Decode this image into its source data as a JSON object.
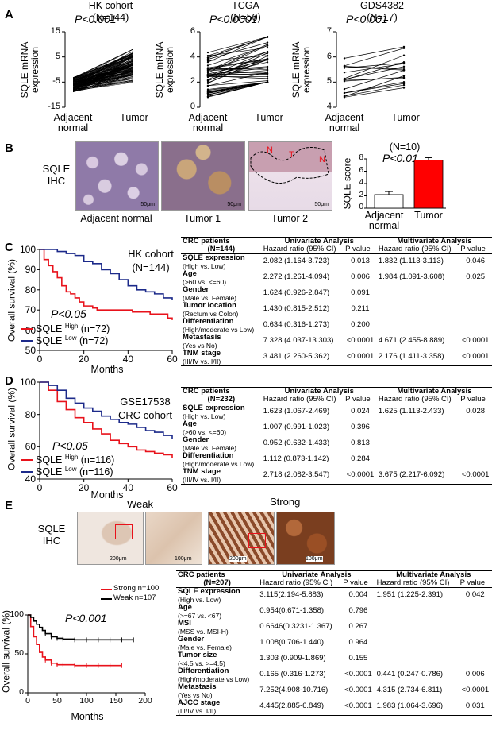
{
  "panels": {
    "A": "A",
    "B": "B",
    "C": "C",
    "D": "D",
    "E": "E"
  },
  "panelA": {
    "ylabel": "SQLE mRNA\nexpression",
    "x_categories": [
      "Adjacent\nnormal",
      "Tumor"
    ],
    "plots": [
      {
        "title": "HK cohort\n(N=144)",
        "p": "P<0.001",
        "yticks": [
          "15",
          "5",
          "-5",
          "-15"
        ]
      },
      {
        "title": "TCGA\n(N=50)",
        "p": "P<0.0001",
        "yticks": [
          "6",
          "4",
          "2",
          "0"
        ]
      },
      {
        "title": "GDS4382\n(N=17)",
        "p": "P<0.001",
        "yticks": [
          "7",
          "6",
          "5",
          "4"
        ]
      }
    ]
  },
  "panelB": {
    "ihc_label": "SQLE\nIHC",
    "captions": [
      "Adjacent normal",
      "Tumor 1",
      "Tumor 2"
    ],
    "scale": "50μm",
    "tumor_marks": [
      "N",
      "T",
      "N"
    ],
    "bar_title": "(N=10)",
    "bar_p": "P<0.01",
    "bar_ylabel": "SQLE score",
    "bar_yticks": [
      "8",
      "6",
      "4",
      "2",
      "0"
    ],
    "bar_categories": [
      "Adjacent\nnormal",
      "Tumor"
    ]
  },
  "chart_data": [
    {
      "type": "scatter",
      "panel": "A",
      "title": "HK cohort (N=144)",
      "categories": [
        "Adjacent normal",
        "Tumor"
      ],
      "ylabel": "SQLE mRNA expression",
      "ylim": [
        -15,
        15
      ]
    },
    {
      "type": "scatter",
      "panel": "A",
      "title": "TCGA (N=50)",
      "categories": [
        "Adjacent normal",
        "Tumor"
      ],
      "ylabel": "SQLE mRNA expression",
      "ylim": [
        0,
        6
      ]
    },
    {
      "type": "scatter",
      "panel": "A",
      "title": "GDS4382 (N=17)",
      "categories": [
        "Adjacent normal",
        "Tumor"
      ],
      "ylabel": "SQLE mRNA expression",
      "ylim": [
        4,
        7
      ]
    },
    {
      "type": "bar",
      "panel": "B",
      "title": "(N=10)",
      "categories": [
        "Adjacent normal",
        "Tumor"
      ],
      "values": [
        2.2,
        7.8
      ],
      "errors": [
        0.5,
        0.4
      ],
      "ylabel": "SQLE score",
      "ylim": [
        0,
        8
      ],
      "colors": [
        "#ffffff",
        "#ff0000"
      ]
    },
    {
      "type": "line",
      "panel": "C",
      "title": "HK cohort (N=144)",
      "xlabel": "Months",
      "ylabel": "Overall survival (%)",
      "xlim": [
        0,
        60
      ],
      "ylim": [
        50,
        100
      ],
      "series": [
        {
          "name": "SQLE High (n=72)",
          "color": "#e8121b",
          "x": [
            0,
            2,
            4,
            6,
            8,
            10,
            12,
            14,
            16,
            18,
            20,
            22,
            24,
            26,
            28,
            30,
            34,
            38,
            42,
            46,
            50,
            54,
            58,
            60
          ],
          "values": [
            100,
            95,
            92,
            89,
            86,
            82,
            79,
            78,
            76,
            74,
            72,
            72,
            71,
            70,
            70,
            70,
            70,
            70,
            69,
            69,
            68,
            68,
            66,
            65
          ]
        },
        {
          "name": "SQLE Low (n=72)",
          "color": "#1c2a8a",
          "x": [
            0,
            4,
            8,
            12,
            16,
            20,
            24,
            28,
            32,
            36,
            40,
            44,
            48,
            52,
            56,
            60
          ],
          "values": [
            100,
            100,
            99,
            98,
            97,
            94,
            93,
            90,
            88,
            85,
            82,
            80,
            79,
            78,
            76,
            75
          ]
        }
      ]
    },
    {
      "type": "line",
      "panel": "D",
      "title": "GSE17538 CRC cohort",
      "xlabel": "Months",
      "ylabel": "Overall survival (%)",
      "xlim": [
        0,
        60
      ],
      "ylim": [
        40,
        100
      ],
      "series": [
        {
          "name": "SQLE High (n=116)",
          "color": "#e8121b",
          "x": [
            0,
            4,
            8,
            12,
            16,
            20,
            24,
            28,
            32,
            36,
            40,
            44,
            48,
            52,
            56,
            60
          ],
          "values": [
            100,
            95,
            88,
            83,
            78,
            75,
            71,
            68,
            64,
            62,
            60,
            58,
            57,
            56,
            55,
            53
          ]
        },
        {
          "name": "SQLE Low (n=116)",
          "color": "#1c2a8a",
          "x": [
            0,
            4,
            8,
            12,
            16,
            20,
            24,
            28,
            32,
            36,
            40,
            44,
            48,
            52,
            56,
            60
          ],
          "values": [
            100,
            98,
            95,
            90,
            87,
            84,
            82,
            79,
            77,
            75,
            74,
            72,
            70,
            69,
            67,
            65
          ]
        }
      ]
    },
    {
      "type": "line",
      "panel": "E",
      "xlabel": "Months",
      "ylabel": "Overall survival (%)",
      "xlim": [
        0,
        200
      ],
      "ylim": [
        0,
        100
      ],
      "series": [
        {
          "name": "Strong n=100",
          "color": "#e8121b",
          "x": [
            0,
            5,
            10,
            15,
            20,
            25,
            30,
            40,
            50,
            60,
            80,
            100,
            120,
            140,
            160
          ],
          "values": [
            100,
            85,
            72,
            62,
            52,
            46,
            42,
            38,
            36,
            36,
            35,
            35,
            35,
            35,
            35
          ]
        },
        {
          "name": "Weak n=107",
          "color": "#000000",
          "x": [
            0,
            5,
            10,
            15,
            20,
            25,
            30,
            40,
            50,
            60,
            80,
            100,
            120,
            140,
            160,
            180
          ],
          "values": [
            100,
            97,
            92,
            88,
            84,
            80,
            76,
            72,
            70,
            69,
            68,
            68,
            68,
            68,
            68,
            68
          ]
        }
      ]
    }
  ],
  "panelC": {
    "cohort": "HK cohort\n(N=144)",
    "p": "P<0.05",
    "xlabel": "Months",
    "ylabel": "Overall survival (%)",
    "yticks": [
      "100",
      "90",
      "80",
      "70",
      "60",
      "50"
    ],
    "xticks": [
      "0",
      "20",
      "40",
      "60"
    ],
    "legend": [
      {
        "name": "SQLE",
        "sup": "High",
        "n": " (n=72)"
      },
      {
        "name": "SQLE",
        "sup": "Low",
        "n": " (n=72)"
      }
    ]
  },
  "panelD": {
    "cohort": "GSE17538\nCRC cohort",
    "p": "P<0.05",
    "xlabel": "Months",
    "ylabel": "Overall survival (%)",
    "yticks": [
      "100",
      "80",
      "60",
      "40"
    ],
    "xticks": [
      "0",
      "20",
      "40",
      "60"
    ],
    "legend": [
      {
        "name": "SQLE",
        "sup": "High",
        "n": " (n=116)"
      },
      {
        "name": "SQLE",
        "sup": "Low",
        "n": " (n=116)"
      }
    ]
  },
  "panelE": {
    "ihc_label": "SQLE\nIHC",
    "weak": "Weak",
    "strong": "Strong",
    "scale1": "200μm",
    "scale2": "100μm",
    "p": "P<0.001",
    "xlabel": "Months",
    "ylabel": "Overall survival (%)",
    "yticks": [
      "100",
      "50",
      "0"
    ],
    "xticks": [
      "0",
      "50",
      "100",
      "150",
      "200"
    ],
    "legend": [
      "Strong n=100",
      "Weak n=107"
    ]
  },
  "tables": {
    "C": {
      "header": [
        "CRC patients",
        "Univariate Analysis",
        "Multivariate Analysis"
      ],
      "n": "(N=144)",
      "sub": [
        "Hazard ratio (95% CI)",
        "P value",
        "Hazard ratio (95% CI)",
        "P value"
      ],
      "rows": [
        {
          "name": "SQLE expression",
          "desc": "(High vs. Low)",
          "u_hr": "2.082 (1.164-3.723)",
          "u_p": "0.013",
          "m_hr": "1.832 (1.113-3.113)",
          "m_p": "0.046"
        },
        {
          "name": "Age",
          "desc": "(>60 vs. <=60)",
          "u_hr": "2.272 (1.261-4.094)",
          "u_p": "0.006",
          "m_hr": "1.984 (1.091-3.608)",
          "m_p": "0.025"
        },
        {
          "name": "Gender",
          "desc": "(Male vs. Female)",
          "u_hr": "1.624 (0.926-2.847)",
          "u_p": "0.091",
          "m_hr": "",
          "m_p": ""
        },
        {
          "name": "Tumor location",
          "desc": "(Rectum vs Colon)",
          "u_hr": "1.430 (0.815-2.512)",
          "u_p": "0.211",
          "m_hr": "",
          "m_p": ""
        },
        {
          "name": "Differentiation",
          "desc": "(High/moderate vs Low)",
          "u_hr": "0.634 (0.316-1.273)",
          "u_p": "0.200",
          "m_hr": "",
          "m_p": ""
        },
        {
          "name": "Metastasis",
          "desc": "(Yes vs No)",
          "u_hr": "7.328 (4.037-13.303)",
          "u_p": "<0.0001",
          "m_hr": "4.671 (2.455-8.889)",
          "m_p": "<0.0001"
        },
        {
          "name": "TNM stage",
          "desc": "(III/IV vs. I/II)",
          "u_hr": "3.481 (2.260-5.362)",
          "u_p": "<0.0001",
          "m_hr": "2.176 (1.411-3.358)",
          "m_p": "<0.0001"
        }
      ]
    },
    "D": {
      "header": [
        "CRC patients",
        "Univariate Analysis",
        "Multivariate Analysis"
      ],
      "n": "(N=232)",
      "sub": [
        "Hazard ratio (95% CI)",
        "P value",
        "Hazard ratio (95% CI)",
        "P value"
      ],
      "rows": [
        {
          "name": "SQLE expression",
          "desc": "(High vs. Low)",
          "u_hr": "1.623 (1.067-2.469)",
          "u_p": "0.024",
          "m_hr": "1.625 (1.113-2.433)",
          "m_p": "0.028"
        },
        {
          "name": "Age",
          "desc": "(>60 vs. <=60)",
          "u_hr": "1.007 (0.991-1.023)",
          "u_p": "0.396",
          "m_hr": "",
          "m_p": ""
        },
        {
          "name": "Gender",
          "desc": "(Male vs. Female)",
          "u_hr": "0.952 (0.632-1.433)",
          "u_p": "0.813",
          "m_hr": "",
          "m_p": ""
        },
        {
          "name": "Differentiation",
          "desc": "(High/moderate vs Low)",
          "u_hr": "1.112 (0.873-1.142)",
          "u_p": "0.284",
          "m_hr": "",
          "m_p": ""
        },
        {
          "name": "TNM stage",
          "desc": "(III/IV vs. I/II)",
          "u_hr": "2.718 (2.082-3.547)",
          "u_p": "<0.0001",
          "m_hr": "3.675 (2.217-6.092)",
          "m_p": "<0.0001"
        }
      ]
    },
    "E": {
      "header": [
        "CRC patients",
        "Univariate Analysis",
        "Multivariate Analysis"
      ],
      "n": "(N=207)",
      "sub": [
        "Hazard ratio (95% CI)",
        "P value",
        "Hazard ratio (95% CI)",
        "P value"
      ],
      "rows": [
        {
          "name": "SQLE expression",
          "desc": "(High vs. Low)",
          "u_hr": "3.115(2.194-5.883)",
          "u_p": "0.004",
          "m_hr": "1.951 (1.225-2.391)",
          "m_p": "0.042"
        },
        {
          "name": "Age",
          "desc": "(>=67 vs. <67)",
          "u_hr": "0.954(0.671-1.358)",
          "u_p": "0.796",
          "m_hr": "",
          "m_p": ""
        },
        {
          "name": "MSI",
          "desc": "(MSS vs. MSI-H)",
          "u_hr": "0.6646(0.3231-1.367)",
          "u_p": "0.267",
          "m_hr": "",
          "m_p": ""
        },
        {
          "name": "Gender",
          "desc": "(Male vs. Female)",
          "u_hr": "1.008(0.706-1.440)",
          "u_p": "0.964",
          "m_hr": "",
          "m_p": ""
        },
        {
          "name": "Tumor size",
          "desc": "(<4.5 vs. >=4.5)",
          "u_hr": "1.303 (0.909-1.869)",
          "u_p": "0.155",
          "m_hr": "",
          "m_p": ""
        },
        {
          "name": "Differentiation",
          "desc": "(High/moderate vs Low)",
          "u_hr": "0.165 (0.316-1.273)",
          "u_p": "<0.0001",
          "m_hr": "0.441 (0.247-0.786)",
          "m_p": "0.006"
        },
        {
          "name": "Metastasis",
          "desc": "(Yes vs No)",
          "u_hr": "7.252(4.908-10.716)",
          "u_p": "<0.0001",
          "m_hr": "4.315 (2.734-6.811)",
          "m_p": "<0.0001"
        },
        {
          "name": "AJCC stage",
          "desc": "(III/IV vs. I/II)",
          "u_hr": "4.445(2.885-6.849)",
          "u_p": "<0.0001",
          "m_hr": "1.983 (1.064-3.696)",
          "m_p": "0.031"
        }
      ]
    }
  }
}
